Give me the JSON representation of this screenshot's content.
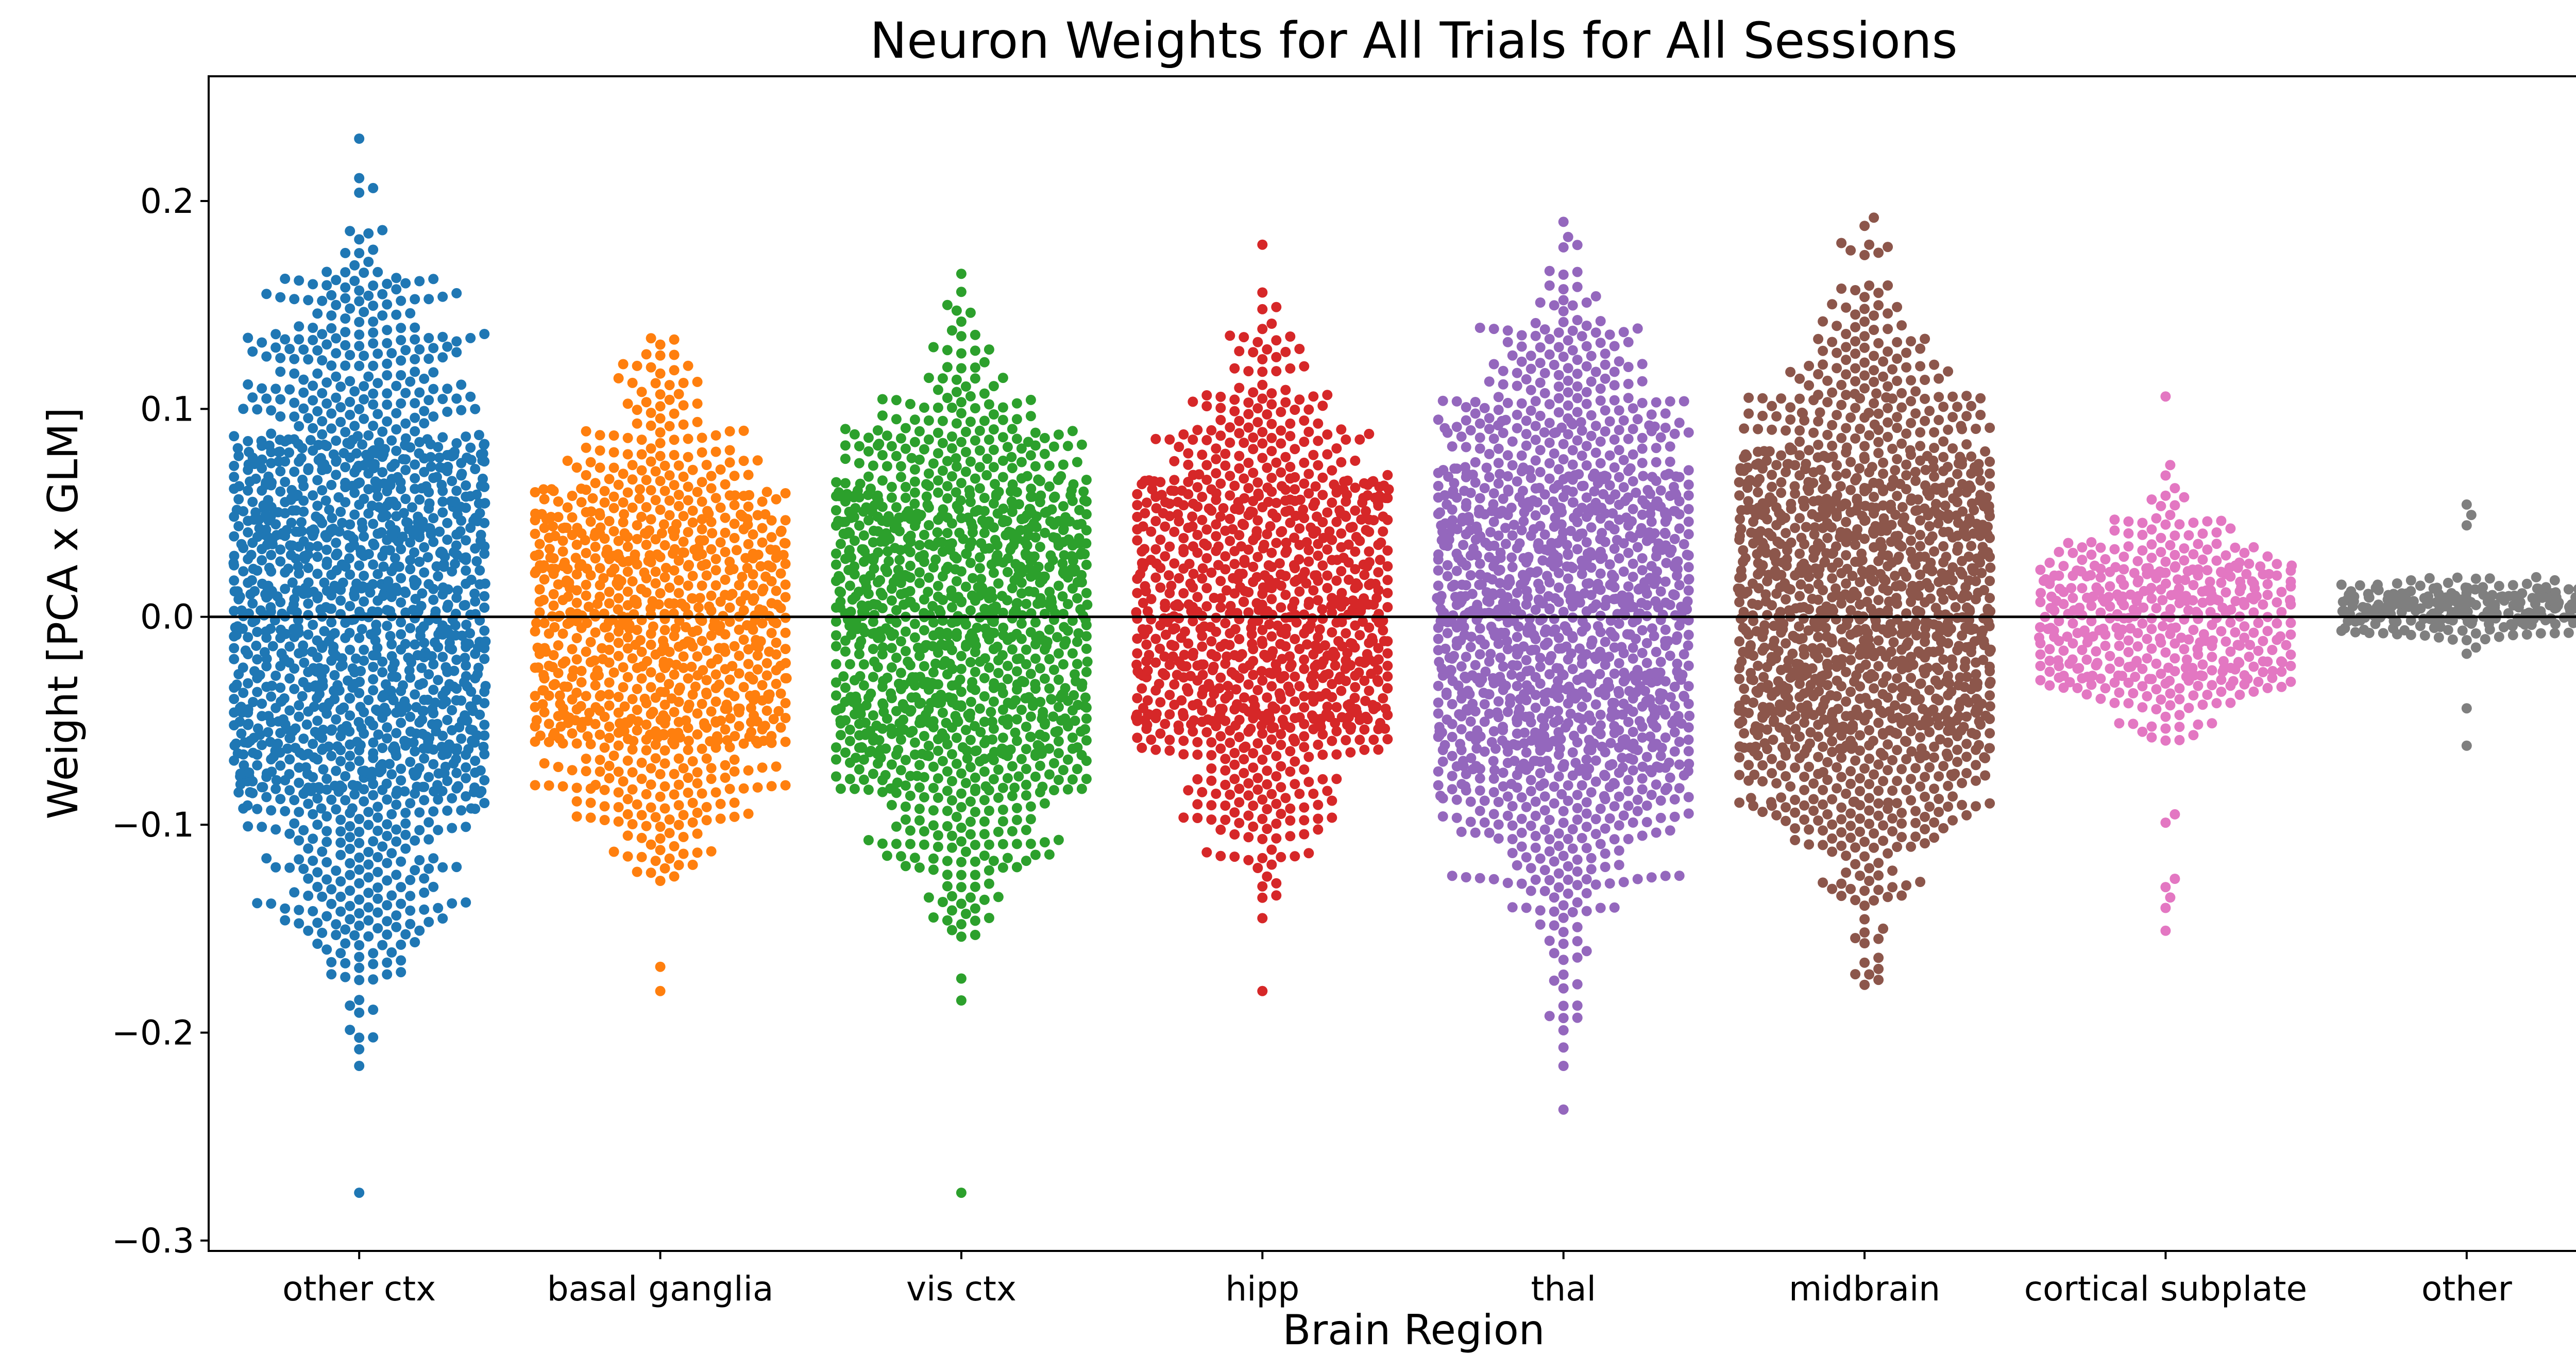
{
  "chart_data": {
    "type": "swarm",
    "title": "Neuron Weights for All Trials for All Sessions",
    "xlabel": "Brain Region",
    "ylabel": "Weight [PCA x GLM]",
    "ylim": [
      -0.305,
      0.26
    ],
    "yticks": [
      0.2,
      0.1,
      0.0,
      -0.1,
      -0.2,
      -0.3
    ],
    "ytick_labels": [
      "0.2",
      "0.1",
      "0.0",
      "−0.1",
      "−0.2",
      "−0.3"
    ],
    "zero_line": 0.0,
    "grid": false,
    "legend": "none",
    "categories": [
      "other ctx",
      "basal ganglia",
      "vis ctx",
      "hipp",
      "thal",
      "midbrain",
      "cortical subplate",
      "other"
    ],
    "series": [
      {
        "category": "other ctx",
        "color": "#1f77b4",
        "summary": {
          "n_approx": 1500,
          "core_range": [
            -0.085,
            0.085
          ],
          "min": -0.277,
          "max": 0.23
        },
        "outliers": [
          0.23,
          0.211,
          0.204,
          0.186,
          0.175,
          0.163,
          0.16,
          0.152,
          0.146,
          0.142,
          0.136,
          -0.13,
          -0.141,
          -0.152,
          -0.167,
          -0.172,
          -0.208,
          -0.216,
          -0.277
        ]
      },
      {
        "category": "basal ganglia",
        "color": "#ff7f0e",
        "summary": {
          "n_approx": 900,
          "core_range": [
            -0.063,
            0.054
          ],
          "min": -0.18,
          "max": 0.134
        },
        "outliers": [
          0.134,
          0.126,
          0.12,
          0.113,
          0.107,
          -0.113,
          -0.121,
          -0.127,
          -0.18
        ]
      },
      {
        "category": "vis ctx",
        "color": "#2ca02c",
        "summary": {
          "n_approx": 1200,
          "core_range": [
            -0.068,
            0.06
          ],
          "min": -0.277,
          "max": 0.165
        },
        "outliers": [
          0.165,
          0.15,
          0.142,
          0.135,
          0.128,
          -0.122,
          -0.13,
          -0.138,
          -0.146,
          -0.153,
          -0.277
        ]
      },
      {
        "category": "hipp",
        "color": "#d62728",
        "summary": {
          "n_approx": 1000,
          "core_range": [
            -0.056,
            0.066
          ],
          "min": -0.18,
          "max": 0.179
        },
        "outliers": [
          0.179,
          0.156,
          0.149,
          0.141,
          0.133,
          -0.098,
          -0.106,
          -0.112,
          -0.117,
          -0.18
        ]
      },
      {
        "category": "thal",
        "color": "#9467bd",
        "summary": {
          "n_approx": 1400,
          "core_range": [
            -0.077,
            0.072
          ],
          "min": -0.237,
          "max": 0.19
        },
        "outliers": [
          0.19,
          0.147,
          0.14,
          -0.14,
          -0.148,
          -0.156,
          -0.165,
          -0.175,
          -0.187,
          -0.192,
          -0.216,
          -0.237
        ]
      },
      {
        "category": "midbrain",
        "color": "#8c564b",
        "summary": {
          "n_approx": 1400,
          "core_range": [
            -0.068,
            0.072
          ],
          "min": -0.177,
          "max": 0.192
        },
        "outliers": [
          0.192,
          0.179,
          0.174,
          0.149,
          0.142,
          0.135,
          0.127,
          -0.15,
          -0.157,
          -0.164,
          -0.172,
          -0.177
        ]
      },
      {
        "category": "cortical subplate",
        "color": "#e377c2",
        "summary": {
          "n_approx": 450,
          "core_range": [
            -0.03,
            0.025
          ],
          "min": -0.151,
          "max": 0.106
        },
        "outliers": [
          0.106,
          0.073,
          0.068,
          -0.095,
          -0.099,
          -0.126,
          -0.13,
          -0.135,
          -0.14,
          -0.151
        ]
      },
      {
        "category": "other",
        "color": "#7f7f7f",
        "summary": {
          "n_approx": 250,
          "core_range": [
            -0.004,
            0.012
          ],
          "min": -0.062,
          "max": 0.054
        },
        "outliers": [
          0.054,
          0.049,
          0.044,
          -0.044,
          -0.062
        ]
      }
    ]
  }
}
